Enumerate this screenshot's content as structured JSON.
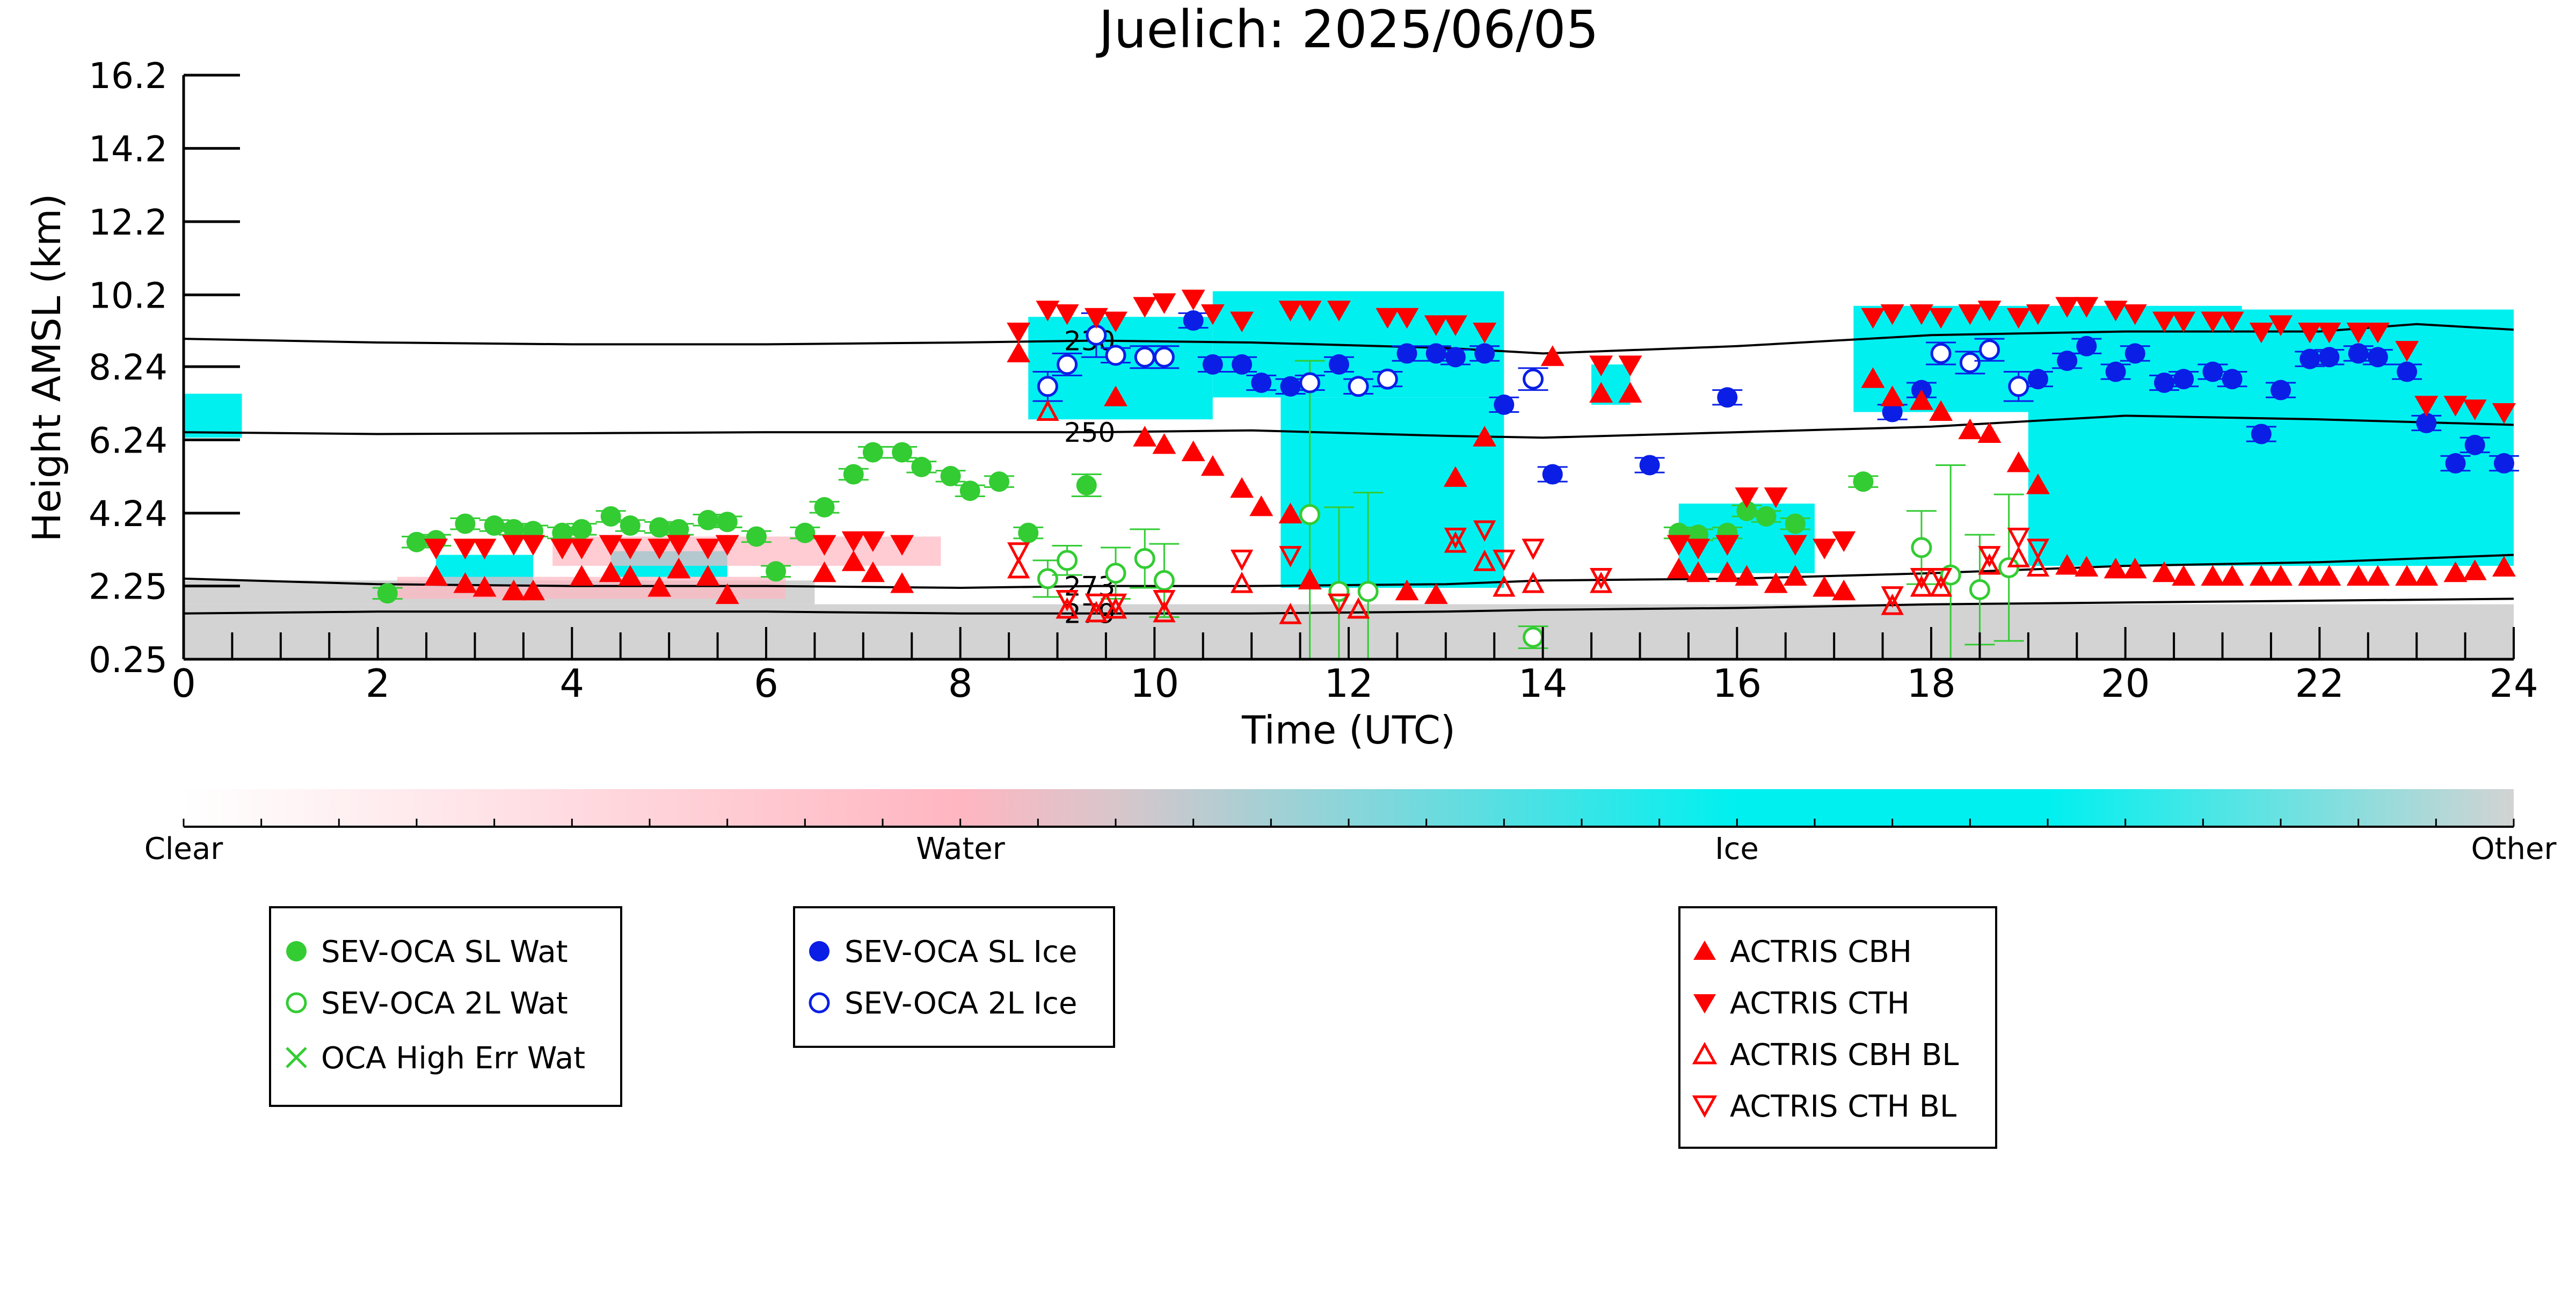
{
  "chart_data": {
    "type": "scatter",
    "title": "Juelich: 2025/06/05",
    "xlabel": "Time (UTC)",
    "ylabel": "Height AMSL (km)",
    "xlim": [
      0,
      24
    ],
    "ylim": [
      0.25,
      16.2
    ],
    "x_ticks": [
      "0",
      "2",
      "4",
      "6",
      "8",
      "10",
      "12",
      "14",
      "16",
      "18",
      "20",
      "22",
      "24"
    ],
    "y_ticks": [
      "0.25",
      "2.25",
      "4.24",
      "6.24",
      "8.24",
      "10.2",
      "12.2",
      "14.2",
      "16.2"
    ],
    "colorbar": {
      "labels": [
        "Clear",
        "Water",
        "Ice",
        "Other"
      ],
      "colors": {
        "clear": "#ffffff",
        "water": "#ffb6c1",
        "ice": "#00f0f0",
        "other": "#d3d3d3"
      }
    },
    "isotherms": [
      {
        "label": "230",
        "x": [
          0,
          2,
          4,
          6,
          8,
          9.4,
          11,
          13,
          14,
          16,
          18,
          20,
          22,
          23,
          24
        ],
        "y": [
          9.0,
          8.9,
          8.85,
          8.85,
          8.9,
          8.95,
          8.9,
          8.75,
          8.6,
          8.8,
          9.1,
          9.2,
          9.2,
          9.4,
          9.25
        ]
      },
      {
        "label": "250",
        "x": [
          0,
          2,
          4,
          6,
          8,
          9.4,
          11,
          13,
          14,
          16,
          18,
          20,
          22,
          24
        ],
        "y": [
          6.45,
          6.4,
          6.42,
          6.45,
          6.45,
          6.45,
          6.5,
          6.35,
          6.3,
          6.45,
          6.6,
          6.9,
          6.8,
          6.65
        ]
      },
      {
        "label": "273",
        "x": [
          0,
          2,
          4,
          6,
          8,
          9.4,
          11,
          13,
          14,
          16,
          18,
          20,
          22,
          24
        ],
        "y": [
          2.45,
          2.3,
          2.25,
          2.25,
          2.2,
          2.25,
          2.25,
          2.3,
          2.4,
          2.45,
          2.6,
          2.8,
          2.9,
          3.1
        ]
      },
      {
        "label": "279",
        "x": [
          0,
          2,
          4,
          6,
          8,
          9.4,
          11,
          13,
          14,
          16,
          18,
          20,
          22,
          24
        ],
        "y": [
          1.5,
          1.55,
          1.55,
          1.55,
          1.5,
          1.5,
          1.5,
          1.55,
          1.6,
          1.65,
          1.75,
          1.8,
          1.85,
          1.9
        ]
      }
    ],
    "cloud_regions": [
      {
        "phase": "other",
        "x": [
          0,
          24
        ],
        "y": [
          0.25,
          1.75
        ]
      },
      {
        "phase": "other",
        "x": [
          0,
          6.5
        ],
        "y": [
          1.75,
          2.4
        ]
      },
      {
        "phase": "ice",
        "x": [
          0,
          0.6
        ],
        "y": [
          6.3,
          7.5
        ]
      },
      {
        "phase": "ice",
        "x": [
          2.6,
          3.6
        ],
        "y": [
          2.3,
          3.1
        ]
      },
      {
        "phase": "ice",
        "x": [
          4.4,
          5.6
        ],
        "y": [
          2.5,
          3.2
        ]
      },
      {
        "phase": "ice",
        "x": [
          8.7,
          10.6
        ],
        "y": [
          6.8,
          9.6
        ]
      },
      {
        "phase": "ice",
        "x": [
          10.6,
          13.6
        ],
        "y": [
          7.4,
          10.3
        ]
      },
      {
        "phase": "ice",
        "x": [
          11.3,
          13.6
        ],
        "y": [
          2.2,
          7.4
        ]
      },
      {
        "phase": "ice",
        "x": [
          14.5,
          14.9
        ],
        "y": [
          7.2,
          8.3
        ]
      },
      {
        "phase": "ice",
        "x": [
          15.4,
          16.8
        ],
        "y": [
          2.6,
          4.5
        ]
      },
      {
        "phase": "ice",
        "x": [
          17.2,
          21.2
        ],
        "y": [
          7.0,
          9.9
        ]
      },
      {
        "phase": "ice",
        "x": [
          19.0,
          24.0
        ],
        "y": [
          2.8,
          9.8
        ]
      },
      {
        "phase": "water",
        "x": [
          3.8,
          7.8
        ],
        "y": [
          2.8,
          3.6
        ]
      },
      {
        "phase": "water",
        "x": [
          2.2,
          6.2
        ],
        "y": [
          1.9,
          2.5
        ]
      }
    ],
    "series": [
      {
        "name": "SEV-OCA SL Wat",
        "marker": "filled-circle",
        "color": "#33cc33",
        "x": [
          2.1,
          2.4,
          2.6,
          2.9,
          3.2,
          3.4,
          3.6,
          3.9,
          4.1,
          4.4,
          4.6,
          4.9,
          5.1,
          5.4,
          5.6,
          5.9,
          6.1,
          6.4,
          6.6,
          6.9,
          7.1,
          7.4,
          7.6,
          7.9,
          8.1,
          8.4,
          8.7,
          9.3,
          15.4,
          15.6,
          15.9,
          16.1,
          16.3,
          16.6,
          17.3
        ],
        "y": [
          2.05,
          3.45,
          3.5,
          3.95,
          3.9,
          3.8,
          3.75,
          3.7,
          3.8,
          4.15,
          3.9,
          3.85,
          3.8,
          4.05,
          4.0,
          3.6,
          2.65,
          3.7,
          4.4,
          5.3,
          5.9,
          5.9,
          5.5,
          5.25,
          4.85,
          5.1,
          3.7,
          5.0,
          3.7,
          3.65,
          3.7,
          4.3,
          4.15,
          3.95,
          5.1
        ],
        "error": [
          0.15,
          0.15,
          0.15,
          0.15,
          0.15,
          0.15,
          0.15,
          0.15,
          0.15,
          0.15,
          0.15,
          0.15,
          0.15,
          0.15,
          0.15,
          0.15,
          0.15,
          0.15,
          0.15,
          0.15,
          0.15,
          0.15,
          0.15,
          0.15,
          0.15,
          0.15,
          0.15,
          0.3,
          0.15,
          0.15,
          0.15,
          0.15,
          0.15,
          0.15,
          0.15
        ]
      },
      {
        "name": "SEV-OCA 2L Wat",
        "marker": "open-circle",
        "color": "#33cc33",
        "x": [
          8.9,
          9.1,
          9.6,
          9.9,
          10.1,
          11.6,
          11.9,
          12.2,
          13.9,
          17.9,
          18.2,
          18.5,
          18.8
        ],
        "y": [
          2.45,
          2.95,
          2.6,
          3.0,
          2.4,
          4.2,
          2.1,
          2.1,
          0.85,
          3.3,
          2.55,
          2.15,
          2.75
        ],
        "error": [
          0.5,
          0.4,
          0.7,
          0.8,
          1.0,
          4.2,
          2.3,
          2.7,
          0.3,
          1.0,
          3.0,
          1.5,
          2.0
        ]
      },
      {
        "name": "OCA High Err Wat",
        "marker": "x",
        "color": "#33cc33",
        "x": [],
        "y": []
      },
      {
        "name": "SEV-OCA SL Ice",
        "marker": "filled-circle",
        "color": "#0a1ee6",
        "x": [
          10.4,
          10.6,
          10.9,
          11.1,
          11.4,
          11.9,
          12.6,
          12.9,
          13.1,
          13.4,
          13.6,
          14.1,
          15.1,
          15.9,
          17.6,
          17.9,
          19.1,
          19.4,
          19.6,
          19.9,
          20.1,
          20.4,
          20.6,
          20.9,
          21.1,
          21.4,
          21.6,
          21.9,
          22.1,
          22.4,
          22.6,
          22.9,
          23.1,
          23.4,
          23.6,
          23.9
        ],
        "y": [
          9.5,
          8.3,
          8.3,
          7.8,
          7.7,
          8.3,
          8.6,
          8.6,
          8.5,
          8.6,
          7.2,
          5.3,
          5.55,
          7.4,
          7.0,
          7.6,
          7.9,
          8.4,
          8.8,
          8.1,
          8.6,
          7.8,
          7.9,
          8.1,
          7.9,
          6.4,
          7.6,
          8.45,
          8.5,
          8.6,
          8.5,
          8.1,
          6.7,
          5.6,
          6.1,
          5.6
        ],
        "error": [
          0.2,
          0.2,
          0.2,
          0.2,
          0.2,
          0.2,
          0.2,
          0.2,
          0.2,
          0.2,
          0.2,
          0.2,
          0.2,
          0.2,
          0.2,
          0.2,
          0.2,
          0.2,
          0.2,
          0.2,
          0.2,
          0.2,
          0.2,
          0.2,
          0.2,
          0.2,
          0.2,
          0.2,
          0.2,
          0.2,
          0.2,
          0.2,
          0.2,
          0.2,
          0.2,
          0.2
        ]
      },
      {
        "name": "SEV-OCA 2L Ice",
        "marker": "open-circle",
        "color": "#0a1ee6",
        "x": [
          8.9,
          9.1,
          9.4,
          9.6,
          9.9,
          10.1,
          11.6,
          12.1,
          12.4,
          13.9,
          18.1,
          18.4,
          18.6,
          18.9
        ],
        "y": [
          7.7,
          8.3,
          9.1,
          8.55,
          8.5,
          8.5,
          7.8,
          7.7,
          7.9,
          7.9,
          8.6,
          8.35,
          8.7,
          7.7
        ],
        "error": [
          0.4,
          0.3,
          0.6,
          0.2,
          0.3,
          0.3,
          0.2,
          0.2,
          0.2,
          0.3,
          0.3,
          0.3,
          0.3,
          0.4
        ]
      },
      {
        "name": "ACTRIS CBH",
        "marker": "triangle-up",
        "color": "#ff0000",
        "x": [
          2.6,
          2.9,
          3.1,
          3.4,
          3.6,
          4.1,
          4.4,
          4.6,
          4.9,
          5.1,
          5.4,
          5.6,
          6.6,
          6.9,
          7.1,
          7.4,
          8.6,
          9.6,
          9.9,
          10.1,
          10.4,
          10.6,
          10.9,
          11.1,
          11.4,
          11.6,
          12.6,
          12.9,
          13.1,
          13.4,
          14.1,
          14.6,
          14.9,
          15.4,
          15.6,
          15.9,
          16.1,
          16.4,
          16.6,
          16.9,
          17.1,
          17.4,
          17.6,
          17.9,
          18.1,
          18.4,
          18.6,
          18.9,
          19.1,
          19.4,
          19.6,
          19.9,
          20.1,
          20.4,
          20.6,
          20.9,
          21.1,
          21.4,
          21.6,
          21.9,
          22.1,
          22.4,
          22.6,
          22.9,
          23.1,
          23.4,
          23.6,
          23.9
        ],
        "y": [
          2.5,
          2.3,
          2.2,
          2.1,
          2.1,
          2.5,
          2.6,
          2.5,
          2.2,
          2.7,
          2.5,
          2.0,
          2.6,
          2.9,
          2.6,
          2.3,
          8.6,
          7.4,
          6.3,
          6.1,
          5.9,
          5.5,
          4.9,
          4.4,
          4.2,
          2.4,
          2.1,
          2.0,
          5.2,
          6.3,
          8.5,
          7.5,
          7.5,
          2.7,
          2.6,
          2.6,
          2.5,
          2.3,
          2.5,
          2.2,
          2.1,
          7.9,
          7.4,
          7.3,
          7.0,
          6.5,
          6.4,
          5.6,
          5.0,
          2.8,
          2.75,
          2.7,
          2.7,
          2.6,
          2.5,
          2.5,
          2.5,
          2.5,
          2.5,
          2.5,
          2.5,
          2.5,
          2.5,
          2.5,
          2.5,
          2.6,
          2.65,
          2.75
        ],
        "error": []
      },
      {
        "name": "ACTRIS CTH",
        "marker": "triangle-down",
        "color": "#ff0000",
        "x": [
          2.6,
          2.9,
          3.1,
          3.4,
          3.6,
          3.9,
          4.1,
          4.4,
          4.6,
          4.9,
          5.1,
          5.4,
          5.6,
          6.6,
          6.9,
          7.1,
          7.4,
          8.6,
          8.9,
          9.1,
          9.4,
          9.6,
          9.9,
          10.1,
          10.4,
          10.6,
          10.9,
          11.4,
          11.6,
          11.9,
          12.4,
          12.6,
          12.9,
          13.1,
          13.4,
          14.6,
          14.9,
          15.4,
          15.6,
          15.9,
          16.1,
          16.4,
          16.6,
          16.9,
          17.1,
          17.4,
          17.6,
          17.9,
          18.1,
          18.4,
          18.6,
          18.9,
          19.1,
          19.4,
          19.6,
          19.9,
          20.1,
          20.4,
          20.6,
          20.9,
          21.1,
          21.4,
          21.6,
          21.9,
          22.1,
          22.4,
          22.6,
          22.9,
          23.1,
          23.4,
          23.6,
          23.9
        ],
        "y": [
          3.3,
          3.3,
          3.3,
          3.4,
          3.4,
          3.3,
          3.3,
          3.4,
          3.3,
          3.3,
          3.4,
          3.3,
          3.4,
          3.4,
          3.5,
          3.5,
          3.4,
          9.2,
          9.8,
          9.7,
          9.6,
          9.5,
          9.9,
          10.0,
          10.1,
          9.7,
          9.5,
          9.8,
          9.8,
          9.8,
          9.6,
          9.6,
          9.4,
          9.4,
          9.2,
          8.3,
          8.3,
          3.4,
          3.3,
          3.4,
          4.7,
          4.7,
          3.4,
          3.3,
          3.5,
          9.6,
          9.7,
          9.7,
          9.6,
          9.7,
          9.8,
          9.6,
          9.7,
          9.9,
          9.9,
          9.8,
          9.7,
          9.5,
          9.5,
          9.5,
          9.5,
          9.2,
          9.4,
          9.2,
          9.2,
          9.2,
          9.2,
          8.7,
          7.2,
          7.2,
          7.1,
          7.0
        ],
        "error": []
      },
      {
        "name": "ACTRIS CBH BL",
        "marker": "open-triangle-up",
        "color": "#ff0000",
        "x": [
          8.6,
          8.9,
          9.1,
          9.4,
          9.6,
          10.1,
          10.9,
          11.4,
          11.6,
          12.1,
          13.1,
          13.4,
          13.6,
          13.9,
          14.6,
          17.6,
          17.9,
          18.1,
          18.6,
          18.9,
          19.1
        ],
        "y": [
          2.7,
          7.0,
          1.6,
          1.5,
          1.6,
          1.5,
          2.3,
          1.45,
          2.4,
          1.6,
          3.4,
          2.9,
          2.2,
          2.3,
          2.3,
          1.7,
          2.2,
          2.2,
          2.8,
          3.0,
          2.75
        ],
        "error": []
      },
      {
        "name": "ACTRIS CTH BL",
        "marker": "open-triangle-down",
        "color": "#ff0000",
        "x": [
          8.6,
          9.1,
          9.4,
          9.6,
          10.1,
          10.9,
          11.4,
          11.9,
          13.1,
          13.4,
          13.6,
          13.9,
          14.6,
          17.6,
          17.9,
          18.1,
          18.6,
          18.9,
          19.1
        ],
        "y": [
          3.2,
          1.9,
          1.8,
          1.8,
          1.9,
          3.0,
          3.1,
          1.8,
          3.6,
          3.8,
          3.0,
          3.3,
          2.5,
          2.0,
          2.5,
          2.5,
          3.1,
          3.6,
          3.3
        ],
        "error": []
      }
    ]
  }
}
